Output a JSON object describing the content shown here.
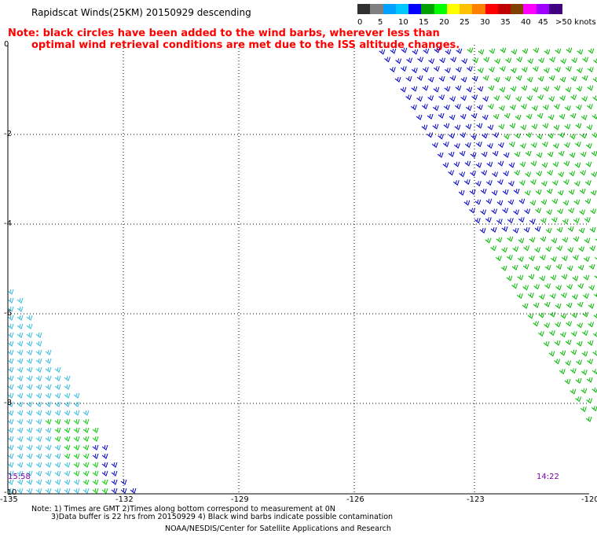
{
  "title": "Rapidscat Winds(25KM) 20150929 descending",
  "note_line1": "Note: black circles have been added to the wind barbs, wherever less than",
  "note_line2": "optimal wind retrieval conditions are met due to the ISS altitude changes.",
  "legend": {
    "unit": ">50 knots",
    "labels": [
      "0",
      "5",
      "10",
      "15",
      "20",
      "25",
      "30",
      "35",
      "40",
      "45"
    ],
    "colors": [
      "#303030",
      "#808080",
      "#00a0ff",
      "#00c8ff",
      "#0000ff",
      "#00a000",
      "#00ff00",
      "#ffff00",
      "#ffc000",
      "#ff8000",
      "#ff0000",
      "#c00000",
      "#804000",
      "#ff00ff",
      "#a000ff",
      "#400080"
    ]
  },
  "y_labels": [
    "0",
    "-2",
    "-4",
    "-6",
    "-8",
    "-10"
  ],
  "x_labels": [
    "-135",
    "-132",
    "-129",
    "-126",
    "-123",
    "-120"
  ],
  "times": {
    "left": "15:58",
    "right": "14:22"
  },
  "footer": {
    "line1": "Note: 1) Times are GMT 2)Times along bottom correspond to measurement at 0N",
    "line2": "3)Data buffer is 22 hrs from 20150929 4) Black wind barbs indicate possible contamination",
    "line3": "NOAA/NESDIS/Center for Satellite Applications and Research"
  },
  "swaths": {
    "right_blue_color": "#0000cc",
    "right_green_color": "#00bb00",
    "left_cyan_color": "#33bbdd",
    "left_green_color": "#00cc00",
    "left_blue_color": "#0000cc"
  }
}
